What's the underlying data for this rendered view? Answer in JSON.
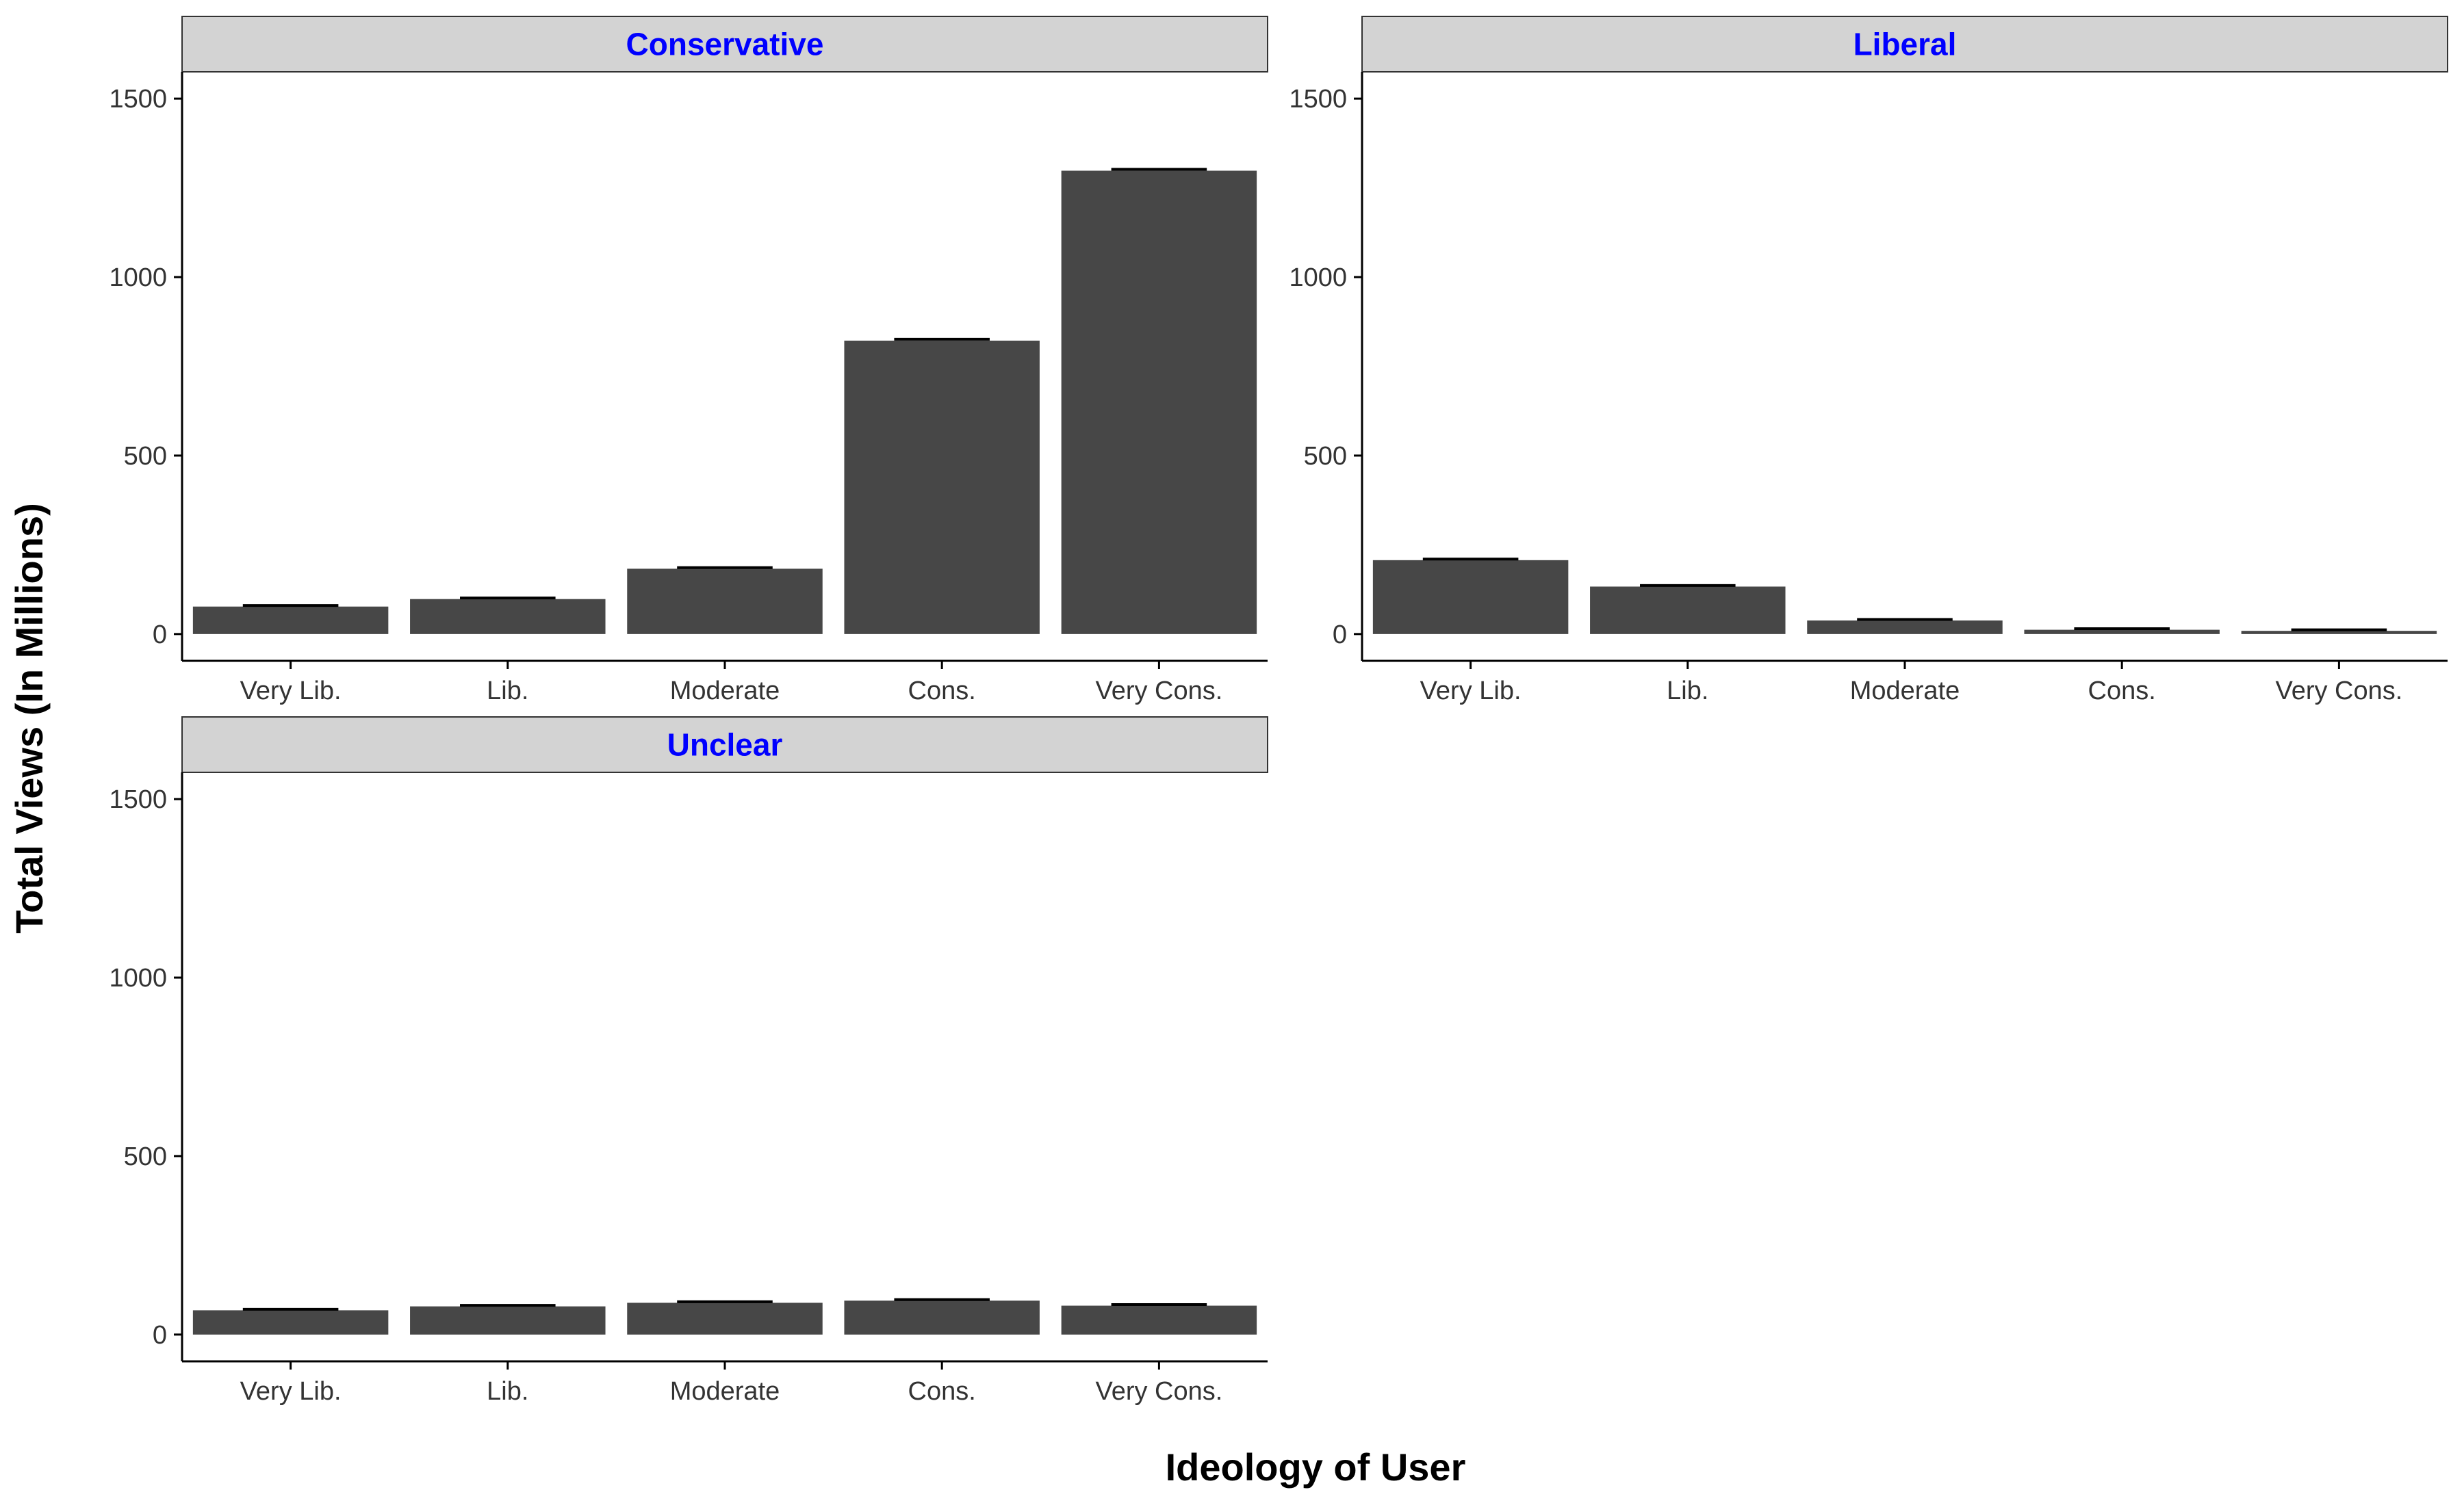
{
  "colors": {
    "bar": "#474747",
    "strip_fill": "#d3d3d3",
    "strip_text": "#0000ff",
    "axis": "#000000",
    "tick_text": "#333333",
    "background": "#ffffff"
  },
  "axis_titles": {
    "x": "Ideology of User",
    "y": "Total Views (In Millions)"
  },
  "chart_data": [
    {
      "type": "bar",
      "title": "Conservative",
      "categories": [
        "Very Lib.",
        "Lib.",
        "Moderate",
        "Cons.",
        "Very Cons."
      ],
      "values": [
        77,
        98,
        183,
        822,
        1298
      ],
      "error_top": [
        80,
        101,
        186,
        826,
        1302
      ],
      "ylim": [
        -75,
        1575
      ],
      "yticks": [
        0,
        500,
        1000,
        1500
      ],
      "xlabel": "Ideology of User",
      "ylabel": "Total Views (In Millions)",
      "grid": false
    },
    {
      "type": "bar",
      "title": "Liberal",
      "categories": [
        "Very Lib.",
        "Lib.",
        "Moderate",
        "Cons.",
        "Very Cons."
      ],
      "values": [
        207,
        133,
        38,
        12,
        9
      ],
      "error_top": [
        210,
        136,
        41,
        15,
        12
      ],
      "ylim": [
        -75,
        1575
      ],
      "yticks": [
        0,
        500,
        1000,
        1500
      ],
      "xlabel": "Ideology of User",
      "ylabel": "Total Views (In Millions)",
      "grid": false
    },
    {
      "type": "bar",
      "title": "Unclear",
      "categories": [
        "Very Lib.",
        "Lib.",
        "Moderate",
        "Cons.",
        "Very Cons."
      ],
      "values": [
        68,
        79,
        89,
        95,
        81
      ],
      "error_top": [
        71,
        82,
        92,
        98,
        84
      ],
      "ylim": [
        -75,
        1575
      ],
      "yticks": [
        0,
        500,
        1000,
        1500
      ],
      "xlabel": "Ideology of User",
      "ylabel": "Total Views (In Millions)",
      "grid": false
    }
  ]
}
